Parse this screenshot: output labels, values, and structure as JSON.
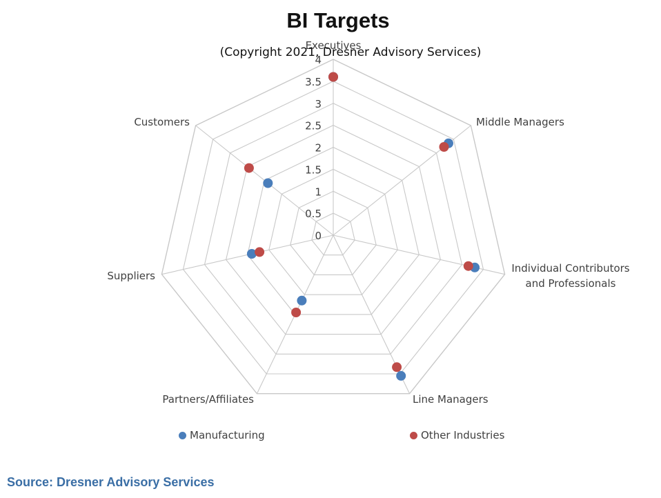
{
  "chart_data": {
    "type": "radar",
    "title": "BI Targets",
    "subtitle": "(Copyright 2021, Dresner Advisory Services)",
    "axes": [
      "Executives",
      "Middle Managers",
      "Individual Contributors and Professionals",
      "Line Managers",
      "Partners/Affiliates",
      "Suppliers",
      "Customers"
    ],
    "axis_label_lines": [
      [
        "Executives"
      ],
      [
        "Middle Managers"
      ],
      [
        "Individual Contributors",
        "and Professionals"
      ],
      [
        "Line Managers"
      ],
      [
        "Partners/Affiliates"
      ],
      [
        "Suppliers"
      ],
      [
        "Customers"
      ]
    ],
    "range": [
      0,
      4
    ],
    "ticks": [
      "0",
      "0.5",
      "1",
      "1.5",
      "2",
      "2.5",
      "3",
      "3.5",
      "4"
    ],
    "tick_values": [
      0,
      0.5,
      1,
      1.5,
      2,
      2.5,
      3,
      3.5,
      4
    ],
    "grid": true,
    "legend_position": "bottom",
    "series": [
      {
        "name": "Manufacturing",
        "color": "#4a7ebb",
        "values": [
          3.6,
          3.35,
          3.3,
          3.55,
          1.65,
          1.9,
          1.9
        ]
      },
      {
        "name": "Other Industries",
        "color": "#be4b48",
        "values": [
          3.6,
          3.22,
          3.15,
          3.33,
          1.95,
          1.72,
          2.45
        ]
      }
    ]
  },
  "source": "Source: Dresner Advisory Services"
}
